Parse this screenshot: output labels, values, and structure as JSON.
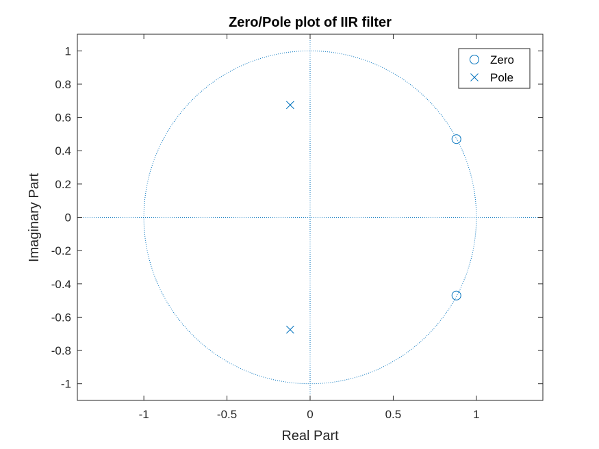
{
  "chart_data": {
    "type": "scatter",
    "title": "Zero/Pole plot of IIR filter",
    "xlabel": "Real Part",
    "ylabel": "Imaginary Part",
    "xlim": [
      -1.4,
      1.4
    ],
    "ylim": [
      -1.1,
      1.1
    ],
    "xticks": [
      -1,
      -0.5,
      0,
      0.5,
      1
    ],
    "xtick_labels": [
      "-1",
      "-0.5",
      "0",
      "0.5",
      "1"
    ],
    "yticks": [
      -1,
      -0.8,
      -0.6,
      -0.4,
      -0.2,
      0,
      0.2,
      0.4,
      0.6,
      0.8,
      1
    ],
    "ytick_labels": [
      "-1",
      "-0.8",
      "-0.6",
      "-0.4",
      "-0.2",
      "0",
      "0.2",
      "0.4",
      "0.6",
      "0.8",
      "1"
    ],
    "grid": false,
    "unit_circle": true,
    "legend_position": "top-right",
    "color": "#0072BD",
    "series": [
      {
        "name": "Zero",
        "marker": "circle",
        "points": [
          {
            "x": 0.88,
            "y": 0.47
          },
          {
            "x": 0.88,
            "y": -0.47
          }
        ]
      },
      {
        "name": "Pole",
        "marker": "x",
        "points": [
          {
            "x": -0.12,
            "y": 0.675
          },
          {
            "x": -0.12,
            "y": -0.675
          }
        ]
      }
    ]
  }
}
